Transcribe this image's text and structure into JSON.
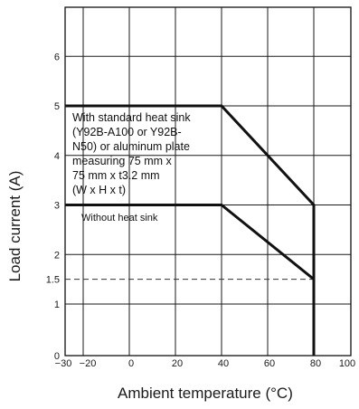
{
  "chart_data": {
    "type": "line",
    "xlabel": "Ambient temperature (°C)",
    "ylabel": "Load current (A)",
    "x_ticks": [
      "−30",
      "−20",
      "0",
      "20",
      "40",
      "60",
      "80",
      "100"
    ],
    "y_ticks": [
      "0",
      "1",
      "1.5",
      "2",
      "3",
      "4",
      "5",
      "6"
    ],
    "xlim": [
      -30,
      100
    ],
    "ylim": [
      0,
      7
    ],
    "grid": true,
    "series": [
      {
        "name": "With standard heat sink (Y92B-A100 or Y92B-N50) or aluminum plate measuring 75 mm x 75 mm x t3.2 mm (W x H x t)",
        "x": [
          -30,
          40,
          80,
          80
        ],
        "y": [
          5,
          5,
          3,
          0
        ]
      },
      {
        "name": "Without heat sink",
        "x": [
          -30,
          40,
          80,
          80
        ],
        "y": [
          3,
          3,
          1.5,
          0
        ]
      }
    ],
    "reference_lines": [
      {
        "axis": "y",
        "value": 1.5,
        "style": "dashed"
      }
    ],
    "annotations": {
      "heat_sink_lines": [
        "With standard heat sink",
        "(Y92B-A100 or Y92B-",
        "N50) or aluminum plate",
        "measuring 75 mm x",
        "75 mm x t3.2 mm",
        "(W x H x t)"
      ],
      "no_heat_sink": "Without heat sink"
    }
  }
}
